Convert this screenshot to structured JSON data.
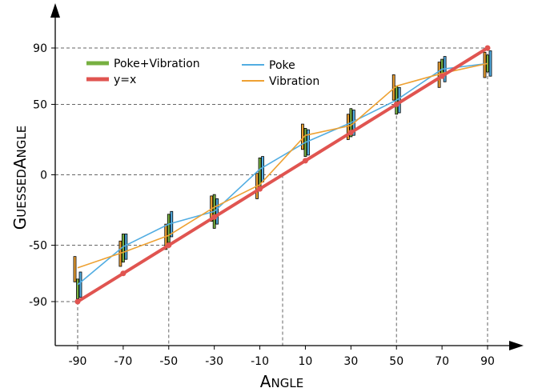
{
  "chart_data": {
    "type": "line",
    "xlabel": "Angle",
    "ylabel": "GuessedAngle",
    "x": [
      -90,
      -70,
      -50,
      -30,
      -10,
      10,
      30,
      50,
      70,
      90
    ],
    "x_ticks": [
      "-90",
      "-70",
      "-50",
      "-30",
      "-10",
      "10",
      "30",
      "50",
      "70",
      "90"
    ],
    "y_ticks": [
      "-90",
      "-50",
      "0",
      "50",
      "90"
    ],
    "y_tick_values": [
      -90,
      -50,
      0,
      50,
      90
    ],
    "ylim": [
      -122,
      105
    ],
    "xlim": [
      -100,
      100
    ],
    "grid": "dashed guide lines at selected points",
    "legend_position": "top-left",
    "series": [
      {
        "name": "Poke+Vibration",
        "color": "#77b041",
        "values": [
          -81,
          -52,
          -38,
          -26,
          1,
          23,
          37,
          53,
          76,
          79
        ],
        "error_low": [
          -88,
          -62,
          -48,
          -38,
          -10,
          13,
          27,
          43,
          70,
          73
        ],
        "error_high": [
          -74,
          -42,
          -28,
          -14,
          12,
          33,
          47,
          63,
          82,
          85
        ]
      },
      {
        "name": "y=x",
        "color": "#e05450",
        "values": [
          -90,
          -70,
          -50,
          -30,
          -10,
          10,
          30,
          50,
          70,
          90
        ]
      },
      {
        "name": "Poke",
        "color": "#52ade2",
        "values": [
          -78,
          -51,
          -35,
          -26,
          4,
          23,
          37,
          53,
          75,
          79
        ]
      },
      {
        "name": "Vibration",
        "color": "#eea132",
        "values": [
          -66,
          -55,
          -43,
          -23,
          -7,
          28,
          35,
          63,
          72,
          79
        ]
      }
    ],
    "guides": [
      {
        "x": -90,
        "y": -90
      },
      {
        "x": -50,
        "y": -50
      },
      {
        "x": 0,
        "y": 0
      },
      {
        "x": 50,
        "y": 50
      },
      {
        "x": 90,
        "y": 90
      }
    ]
  }
}
